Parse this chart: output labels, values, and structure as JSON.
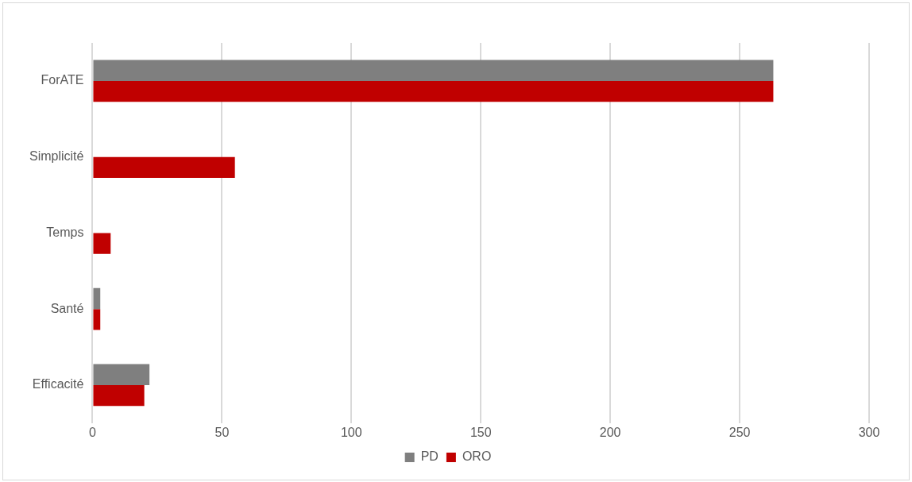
{
  "chart_data": {
    "type": "bar",
    "orientation": "horizontal",
    "categories": [
      "ForATE",
      "Simplicité",
      "Temps",
      "Santé",
      "Efficacité"
    ],
    "series": [
      {
        "name": "PD",
        "color": "#7f7f7f",
        "values": [
          263,
          0,
          0,
          3,
          22
        ]
      },
      {
        "name": "ORO",
        "color": "#c00000",
        "values": [
          263,
          55,
          7,
          3,
          20
        ]
      }
    ],
    "xlim": [
      0,
      300
    ],
    "xticks": [
      0,
      50,
      100,
      150,
      200,
      250,
      300
    ],
    "grid": "x",
    "legend": "bottom"
  }
}
